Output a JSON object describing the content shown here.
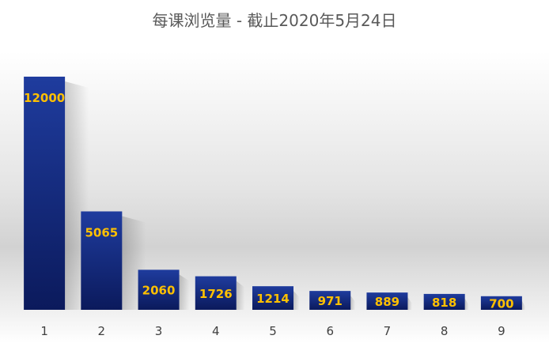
{
  "chart_data": {
    "type": "bar",
    "title": "每课浏览量 - 截止2020年5月24日",
    "categories": [
      "1",
      "2",
      "3",
      "4",
      "5",
      "6",
      "7",
      "8",
      "9"
    ],
    "values": [
      12000,
      5065,
      2060,
      1726,
      1214,
      971,
      889,
      818,
      700
    ],
    "data_labels": [
      "12000",
      "5065",
      "2060",
      "1726",
      "1214",
      "971",
      "889",
      "818",
      "700"
    ],
    "xlabel": "",
    "ylabel": "",
    "ylim": [
      0,
      12000
    ],
    "grid": false,
    "legend": "none",
    "colors": {
      "bar_top": "#1e3a9a",
      "bar_bottom": "#0b1a5e",
      "label": "#ffc000",
      "title": "#595959",
      "tick": "#404040",
      "background_top": "#ffffff",
      "background_mid": "#d9d9d9"
    }
  }
}
